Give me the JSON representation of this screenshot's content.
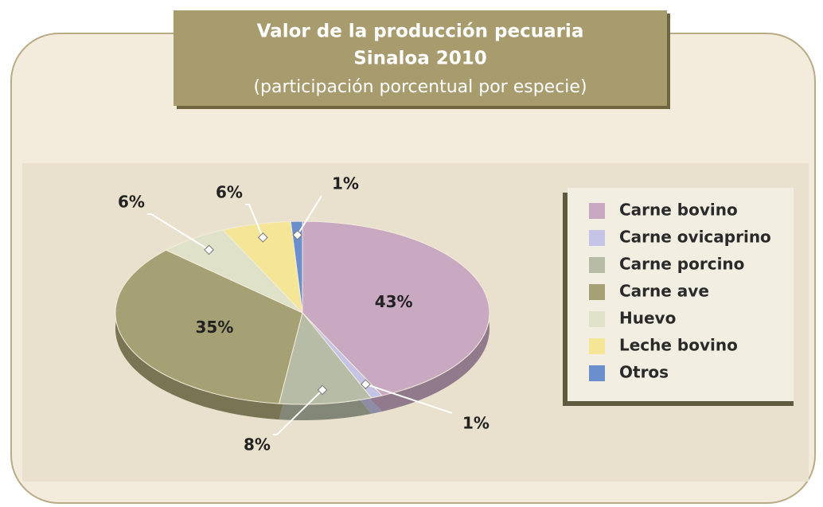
{
  "chart_data": {
    "type": "pie",
    "title": [
      "Valor de la producción pecuaria",
      "Sinaloa 2010"
    ],
    "subtitle": "(participación porcentual por especie)",
    "categories": [
      "Carne bovino",
      "Carne ovicaprino",
      "Carne porcino",
      "Carne ave",
      "Huevo",
      "Leche bovino",
      "Otros"
    ],
    "values": [
      43,
      1,
      8,
      35,
      6,
      6,
      1
    ],
    "value_labels": [
      "43%",
      "1%",
      "8%",
      "35%",
      "6%",
      "6%",
      "1%"
    ],
    "colors": [
      "#c9a9c1",
      "#c6c4e6",
      "#b6bca6",
      "#a6a174",
      "#dfe2c8",
      "#f4e597",
      "#6b8ecd"
    ],
    "legend": "right"
  }
}
